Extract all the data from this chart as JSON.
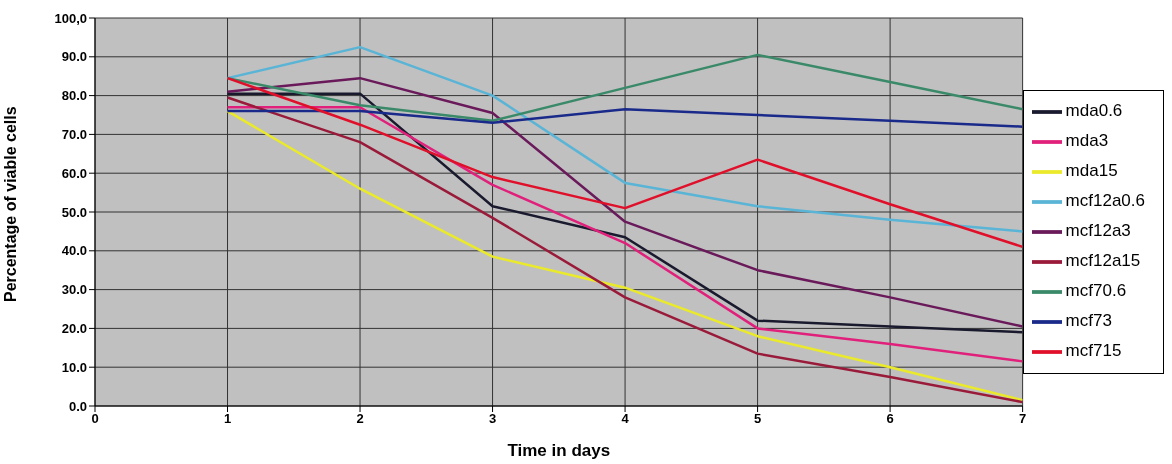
{
  "chart_data": {
    "type": "line",
    "xlabel": "Time in days",
    "ylabel": "Percentage of viable cells",
    "x": [
      1,
      2,
      3,
      4,
      5,
      6,
      7
    ],
    "xlim": [
      0,
      7
    ],
    "xticks": [
      0,
      1,
      2,
      3,
      4,
      5,
      6,
      7
    ],
    "ylim": [
      0,
      100
    ],
    "yticks": [
      {
        "value": 0,
        "label": "0.0"
      },
      {
        "value": 10,
        "label": "10.0"
      },
      {
        "value": 20,
        "label": "20.0"
      },
      {
        "value": 30,
        "label": "30.0"
      },
      {
        "value": 40,
        "label": "40.0"
      },
      {
        "value": 50,
        "label": "50.0"
      },
      {
        "value": 60,
        "label": "60.0"
      },
      {
        "value": 70,
        "label": "70.0"
      },
      {
        "value": 80,
        "label": "80.0"
      },
      {
        "value": 90,
        "label": "90.0"
      },
      {
        "value": 100,
        "label": "100,0"
      }
    ],
    "grid": true,
    "legend": "right",
    "marker": "none",
    "line_style": "solid",
    "series": [
      {
        "name": "mda0.6",
        "color": "#1a1a2e",
        "values": [
          80.5,
          80.5,
          51.5,
          43.5,
          22,
          20.5,
          19
        ]
      },
      {
        "name": "mda3",
        "color": "#e0207a",
        "values": [
          77,
          77,
          57,
          42,
          20,
          16,
          11.5
        ]
      },
      {
        "name": "mda15",
        "color": "#eaea2a",
        "values": [
          76,
          56,
          38.5,
          30.5,
          18,
          10,
          1.5
        ]
      },
      {
        "name": "mcf12a0.6",
        "color": "#5ab4d6",
        "values": [
          84.5,
          92.5,
          80,
          57.5,
          51.5,
          48,
          45
        ]
      },
      {
        "name": "mcf12a3",
        "color": "#6a1a5a",
        "values": [
          81,
          84.5,
          75.5,
          47.5,
          35,
          28,
          20.5
        ]
      },
      {
        "name": "mcf12a15",
        "color": "#9a1a3a",
        "values": [
          79.5,
          68,
          48.5,
          28,
          13.5,
          7.5,
          1
        ]
      },
      {
        "name": "mcf70.6",
        "color": "#3a8a6a",
        "values": [
          84.5,
          77.5,
          73.5,
          82,
          90.5,
          83.5,
          76.5
        ]
      },
      {
        "name": "mcf73",
        "color": "#1a2a8a",
        "values": [
          76,
          76,
          73,
          76.5,
          75,
          73.5,
          72
        ]
      },
      {
        "name": "mcf715",
        "color": "#e0102a",
        "values": [
          84.5,
          72.5,
          59,
          51,
          63.5,
          52,
          41
        ]
      }
    ]
  }
}
